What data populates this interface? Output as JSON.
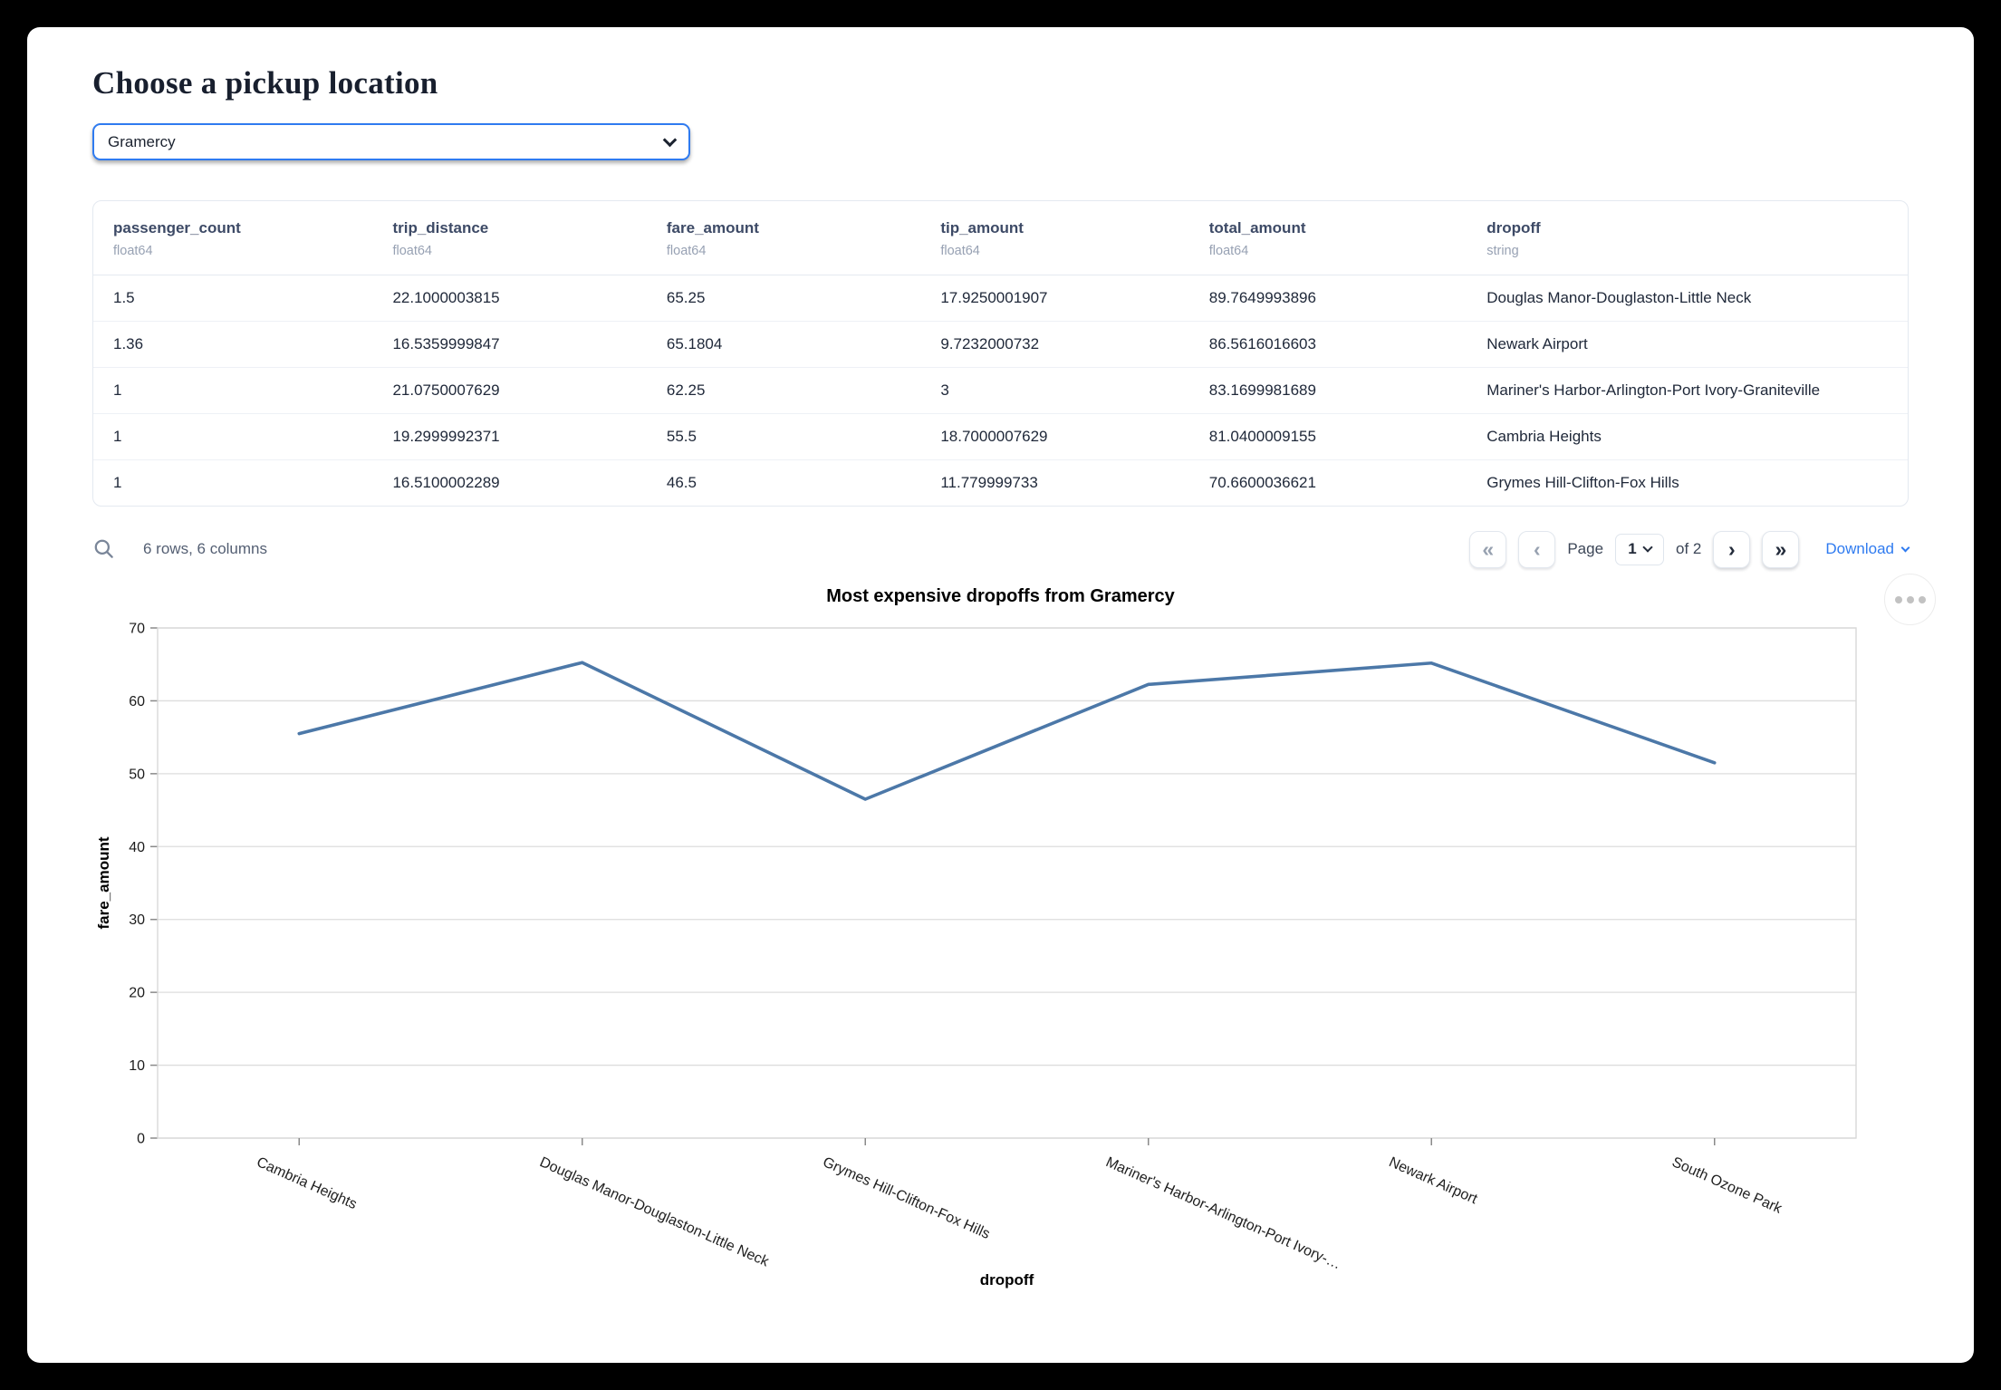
{
  "page": {
    "title": "Choose a pickup location"
  },
  "pickup_select": {
    "value": "Gramercy"
  },
  "table": {
    "columns": [
      {
        "name": "passenger_count",
        "type": "float64"
      },
      {
        "name": "trip_distance",
        "type": "float64"
      },
      {
        "name": "fare_amount",
        "type": "float64"
      },
      {
        "name": "tip_amount",
        "type": "float64"
      },
      {
        "name": "total_amount",
        "type": "float64"
      },
      {
        "name": "dropoff",
        "type": "string"
      }
    ],
    "rows": [
      [
        "1.5",
        "22.1000003815",
        "65.25",
        "17.9250001907",
        "89.7649993896",
        "Douglas Manor-Douglaston-Little Neck"
      ],
      [
        "1.36",
        "16.5359999847",
        "65.1804",
        "9.7232000732",
        "86.5616016603",
        "Newark Airport"
      ],
      [
        "1",
        "21.0750007629",
        "62.25",
        "3",
        "83.1699981689",
        "Mariner's Harbor-Arlington-Port Ivory-Graniteville"
      ],
      [
        "1",
        "19.2999992371",
        "55.5",
        "18.7000007629",
        "81.0400009155",
        "Cambria Heights"
      ],
      [
        "1",
        "16.5100002289",
        "46.5",
        "11.779999733",
        "70.6600036621",
        "Grymes Hill-Clifton-Fox Hills"
      ]
    ]
  },
  "table_footer": {
    "summary": "6 rows, 6 columns",
    "first_icon": "«",
    "prev_icon": "‹",
    "next_icon": "›",
    "last_icon": "»",
    "page_label": "Page",
    "page_value": "1",
    "page_total_label": "of 2",
    "download_label": "Download"
  },
  "chart_data": {
    "type": "line",
    "title": "Most expensive dropoffs from Gramercy",
    "xlabel": "dropoff",
    "ylabel": "fare_amount",
    "categories": [
      "Cambria Heights",
      "Douglas Manor-Douglaston-Little Neck",
      "Grymes Hill-Clifton-Fox Hills",
      "Mariner's Harbor-Arlington-Port Ivory-Graniteville",
      "Newark Airport",
      "South Ozone Park"
    ],
    "x_tick_labels": [
      "Cambria Heights",
      "Douglas Manor-Douglaston-Little Neck",
      "Grymes Hill-Clifton-Fox Hills",
      "Mariner's Harbor-Arlington-Port Ivory-…",
      "Newark Airport",
      "South Ozone Park"
    ],
    "values": [
      55.5,
      65.25,
      46.5,
      62.25,
      65.1804,
      51.5
    ],
    "ylim": [
      0,
      70
    ],
    "yticks": [
      0,
      10,
      20,
      30,
      40,
      50,
      60,
      70
    ],
    "grid": true,
    "legend": "none",
    "line_color": "#4c78a8"
  },
  "colors": {
    "accent_blue": "#2f7bf0",
    "line_blue": "#4c78a8"
  }
}
